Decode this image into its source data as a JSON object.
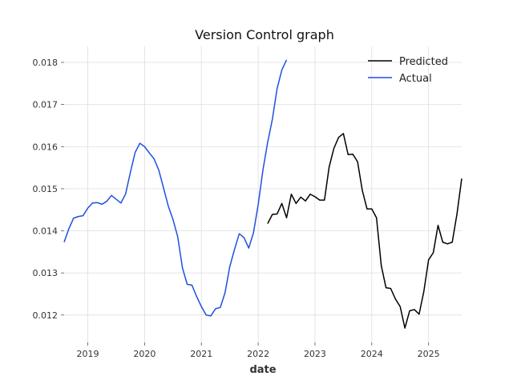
{
  "chart_data": {
    "type": "line",
    "title": "Version Control graph",
    "xlabel": "date",
    "ylabel": "",
    "x_tick_labels": [
      "2019",
      "2020",
      "2021",
      "2022",
      "2023",
      "2024",
      "2025"
    ],
    "y_tick_labels": [
      "0.012",
      "0.013",
      "0.014",
      "0.015",
      "0.016",
      "0.017",
      "0.018"
    ],
    "xlim": [
      "2018-08",
      "2025-08"
    ],
    "ylim": [
      0.01135,
      0.01838
    ],
    "grid": true,
    "legend_position": "top-right",
    "series": [
      {
        "name": "Actual",
        "color": "#1f4fe0",
        "x": [
          "2018-08",
          "2018-09",
          "2018-10",
          "2018-11",
          "2018-12",
          "2019-01",
          "2019-02",
          "2019-03",
          "2019-04",
          "2019-05",
          "2019-06",
          "2019-07",
          "2019-08",
          "2019-09",
          "2019-10",
          "2019-11",
          "2019-12",
          "2020-01",
          "2020-02",
          "2020-03",
          "2020-04",
          "2020-05",
          "2020-06",
          "2020-07",
          "2020-08",
          "2020-09",
          "2020-10",
          "2020-11",
          "2020-12",
          "2021-01",
          "2021-02",
          "2021-03",
          "2021-04",
          "2021-05",
          "2021-06",
          "2021-07",
          "2021-08",
          "2021-09",
          "2021-10",
          "2021-11",
          "2021-12",
          "2022-01",
          "2022-02",
          "2022-03",
          "2022-04",
          "2022-05",
          "2022-06",
          "2022-07"
        ],
        "values": [
          0.01373,
          0.01405,
          0.0143,
          0.01434,
          0.01436,
          0.01454,
          0.01466,
          0.01467,
          0.01463,
          0.0147,
          0.01484,
          0.01475,
          0.01466,
          0.01488,
          0.01539,
          0.01586,
          0.01608,
          0.016,
          0.01585,
          0.01571,
          0.01544,
          0.01502,
          0.01459,
          0.01427,
          0.01386,
          0.01312,
          0.01273,
          0.01271,
          0.01244,
          0.0122,
          0.012,
          0.01198,
          0.01215,
          0.01218,
          0.01253,
          0.01315,
          0.01356,
          0.01393,
          0.01384,
          0.01359,
          0.01395,
          0.01462,
          0.01544,
          0.0161,
          0.01665,
          0.01738,
          0.01782,
          0.01806
        ]
      },
      {
        "name": "Predicted",
        "color": "#000000",
        "x": [
          "2022-03",
          "2022-04",
          "2022-05",
          "2022-06",
          "2022-07",
          "2022-08",
          "2022-09",
          "2022-10",
          "2022-11",
          "2022-12",
          "2023-01",
          "2023-02",
          "2023-03",
          "2023-04",
          "2023-05",
          "2023-06",
          "2023-07",
          "2023-08",
          "2023-09",
          "2023-10",
          "2023-11",
          "2023-12",
          "2024-01",
          "2024-02",
          "2024-03",
          "2024-04",
          "2024-05",
          "2024-06",
          "2024-07",
          "2024-08",
          "2024-09",
          "2024-10",
          "2024-11",
          "2024-12",
          "2025-01",
          "2025-02",
          "2025-03",
          "2025-04",
          "2025-05",
          "2025-06",
          "2025-07",
          "2025-08"
        ],
        "values": [
          0.01417,
          0.01439,
          0.0144,
          0.01465,
          0.01431,
          0.01487,
          0.01465,
          0.0148,
          0.01471,
          0.01487,
          0.01481,
          0.01473,
          0.01473,
          0.01552,
          0.01596,
          0.01622,
          0.01631,
          0.01581,
          0.01582,
          0.01564,
          0.01496,
          0.01452,
          0.01452,
          0.01431,
          0.01318,
          0.01265,
          0.01263,
          0.01238,
          0.0122,
          0.01169,
          0.0121,
          0.01213,
          0.01202,
          0.01256,
          0.01331,
          0.01348,
          0.01413,
          0.01373,
          0.01369,
          0.01373,
          0.0144,
          0.01524
        ]
      }
    ]
  }
}
